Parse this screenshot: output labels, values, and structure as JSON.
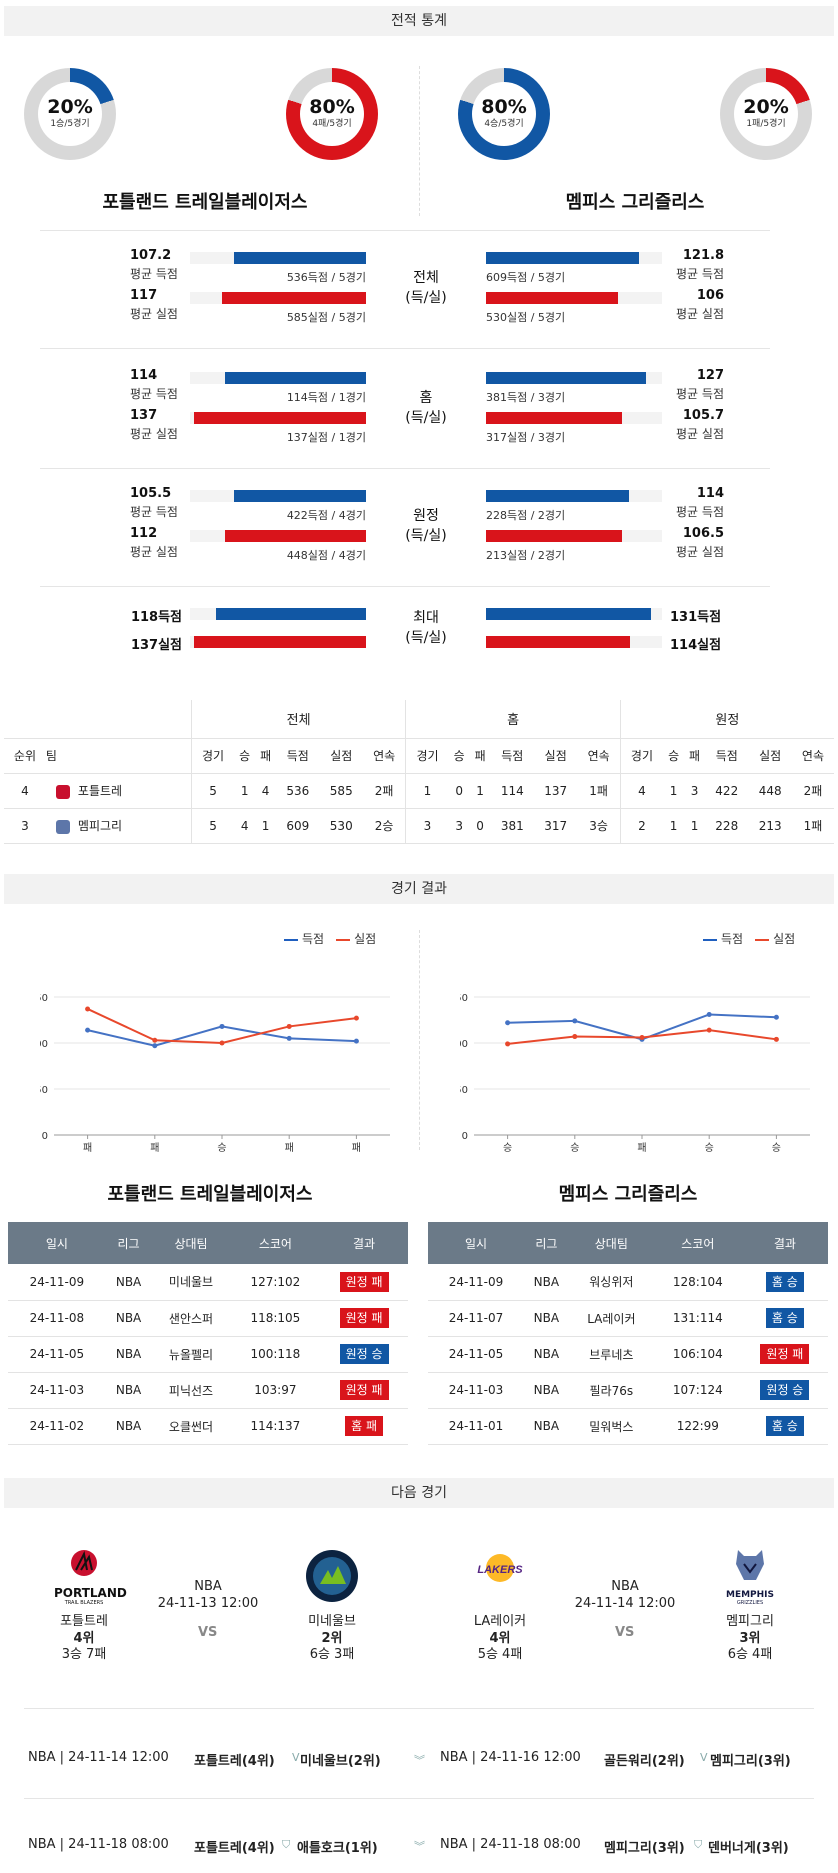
{
  "stats_title": "전적 통계",
  "results_title": "경기 결과",
  "next_title": "다음 경기",
  "colors": {
    "home": "#1157a4",
    "away": "#d9141b",
    "loss": "#d9141b",
    "win": "#1157a4"
  },
  "teams": {
    "left": {
      "name": "포틀랜드 트레일블레이저스",
      "short": "포틀트레",
      "donut_win": {
        "pct": "20%",
        "sub": "1승/5경기",
        "fraction": 0.2
      },
      "donut_loss": {
        "pct": "80%",
        "sub": "4패/5경기",
        "fraction": 0.8
      }
    },
    "right": {
      "name": "멤피스 그리즐리스",
      "short": "멤피그리",
      "donut_win": {
        "pct": "80%",
        "sub": "4승/5경기",
        "fraction": 0.8
      },
      "donut_loss": {
        "pct": "20%",
        "sub": "1패/5경기",
        "fraction": 0.2
      }
    }
  },
  "compare": [
    {
      "cat": "전체",
      "cat2": "(득/실)",
      "left": [
        {
          "value": "107.2",
          "label": "평균 득점",
          "text": "536득점 / 5경기",
          "fraction": 0.75
        },
        {
          "value": "117",
          "label": "평균 실점",
          "text": "585실점 / 5경기",
          "fraction": 0.82
        }
      ],
      "right": [
        {
          "value": "121.8",
          "label": "평균 득점",
          "text": "609득점 / 5경기",
          "fraction": 0.87
        },
        {
          "value": "106",
          "label": "평균 실점",
          "text": "530실점 / 5경기",
          "fraction": 0.75
        }
      ]
    },
    {
      "cat": "홈",
      "cat2": "(득/실)",
      "left": [
        {
          "value": "114",
          "label": "평균 득점",
          "text": "114득점 / 1경기",
          "fraction": 0.8
        },
        {
          "value": "137",
          "label": "평균 실점",
          "text": "137실점 / 1경기",
          "fraction": 0.98
        }
      ],
      "right": [
        {
          "value": "127",
          "label": "평균 득점",
          "text": "381득점 / 3경기",
          "fraction": 0.91
        },
        {
          "value": "105.7",
          "label": "평균 실점",
          "text": "317실점 / 3경기",
          "fraction": 0.77
        }
      ]
    },
    {
      "cat": "원정",
      "cat2": "(득/실)",
      "left": [
        {
          "value": "105.5",
          "label": "평균 득점",
          "text": "422득점 / 4경기",
          "fraction": 0.75
        },
        {
          "value": "112",
          "label": "평균 실점",
          "text": "448실점 / 4경기",
          "fraction": 0.8
        }
      ],
      "right": [
        {
          "value": "114",
          "label": "평균 득점",
          "text": "228득점 / 2경기",
          "fraction": 0.81
        },
        {
          "value": "106.5",
          "label": "평균 실점",
          "text": "213실점 / 2경기",
          "fraction": 0.77
        }
      ]
    }
  ],
  "max_row": {
    "cat": "최대",
    "cat2": "(득/실)",
    "left": [
      {
        "value": "118득점",
        "fraction": 0.85
      },
      {
        "value": "137실점",
        "fraction": 0.98
      }
    ],
    "right": [
      {
        "value": "131득점",
        "fraction": 0.94
      },
      {
        "value": "114실점",
        "fraction": 0.82
      }
    ]
  },
  "standings": {
    "groups": [
      "전체",
      "홈",
      "원정"
    ],
    "headers": [
      "순위",
      "팀",
      "경기",
      "승",
      "패",
      "득점",
      "실점",
      "연속",
      "경기",
      "승",
      "패",
      "득점",
      "실점",
      "연속",
      "경기",
      "승",
      "패",
      "득점",
      "실점",
      "연속"
    ],
    "rows": [
      [
        "4",
        "포틀트레",
        "5",
        "1",
        "4",
        "536",
        "585",
        "2패",
        "1",
        "0",
        "1",
        "114",
        "137",
        "1패",
        "4",
        "1",
        "3",
        "422",
        "448",
        "2패"
      ],
      [
        "3",
        "멤피그리",
        "5",
        "4",
        "1",
        "609",
        "530",
        "2승",
        "3",
        "3",
        "0",
        "381",
        "317",
        "3승",
        "2",
        "1",
        "1",
        "228",
        "213",
        "1패"
      ]
    ]
  },
  "chart_data": [
    {
      "type": "line",
      "categories": [
        "패",
        "패",
        "승",
        "패",
        "패"
      ],
      "series": [
        {
          "name": "득점",
          "values": [
            114,
            97,
            118,
            105,
            102
          ]
        },
        {
          "name": "실점",
          "values": [
            137,
            103,
            100,
            118,
            127
          ]
        }
      ],
      "ylim": [
        0,
        150
      ],
      "yticks": [
        "0",
        "50",
        "100",
        "150"
      ],
      "legend": "top-right",
      "grid": true
    },
    {
      "type": "line",
      "categories": [
        "승",
        "승",
        "패",
        "승",
        "승"
      ],
      "series": [
        {
          "name": "득점",
          "values": [
            122,
            124,
            104,
            131,
            128
          ]
        },
        {
          "name": "실점",
          "values": [
            99,
            107,
            106,
            114,
            104
          ]
        }
      ],
      "ylim": [
        0,
        150
      ],
      "yticks": [
        "0",
        "50",
        "100",
        "150"
      ],
      "legend": "top-right",
      "grid": true
    }
  ],
  "results": {
    "headers": [
      "일시",
      "리그",
      "상대팀",
      "스코어",
      "결과"
    ],
    "left": [
      [
        "24-11-09",
        "NBA",
        "미네울브",
        "127:102",
        "원정 패",
        "loss"
      ],
      [
        "24-11-08",
        "NBA",
        "샌안스퍼",
        "118:105",
        "원정 패",
        "loss"
      ],
      [
        "24-11-05",
        "NBA",
        "뉴올펠리",
        "100:118",
        "원정 승",
        "win"
      ],
      [
        "24-11-03",
        "NBA",
        "피닉선즈",
        "103:97",
        "원정 패",
        "loss"
      ],
      [
        "24-11-02",
        "NBA",
        "오클썬더",
        "114:137",
        "홈 패",
        "loss"
      ]
    ],
    "right": [
      [
        "24-11-09",
        "NBA",
        "워싱위저",
        "128:104",
        "홈 승",
        "win"
      ],
      [
        "24-11-07",
        "NBA",
        "LA레이커",
        "131:114",
        "홈 승",
        "win"
      ],
      [
        "24-11-05",
        "NBA",
        "브루네츠",
        "106:104",
        "원정 패",
        "loss"
      ],
      [
        "24-11-03",
        "NBA",
        "필라76s",
        "107:124",
        "원정 승",
        "win"
      ],
      [
        "24-11-01",
        "NBA",
        "밀워벅스",
        "122:99",
        "홈 승",
        "win"
      ]
    ]
  },
  "next": {
    "left": {
      "league": "NBA",
      "time": "24-11-13 12:00",
      "vs": "VS",
      "home": {
        "logo": "PORTLAND",
        "logo_sub": "TRAIL BLAZERS",
        "name": "포틀트레",
        "rank": "4위",
        "record": "3승 7패"
      },
      "away": {
        "name": "미네울브",
        "rank": "2위",
        "record": "6승 3패"
      }
    },
    "right": {
      "league": "NBA",
      "time": "24-11-14 12:00",
      "vs": "VS",
      "home": {
        "logo": "LAKERS",
        "name": "LA레이커",
        "rank": "4위",
        "record": "5승 4패"
      },
      "away": {
        "logo": "MEMPHIS",
        "logo_sub": "GRIZZLIES",
        "name": "멤피그리",
        "rank": "3위",
        "record": "6승 4패"
      }
    }
  },
  "schedule": [
    {
      "l_meta": "NBA | 24-11-14 12:00",
      "l_teams": "포틀트레(4위)",
      "l_opp": "미네울브(2위)",
      "r_meta": "NBA | 24-11-16 12:00",
      "r_teams": "골든워리(2위)",
      "r_opp": "멤피그리(3위)"
    },
    {
      "l_meta": "NBA | 24-11-18 08:00",
      "l_teams": "포틀트레(4위)",
      "l_opp": "애틀호크(1위)",
      "r_meta": "NBA | 24-11-18 08:00",
      "r_teams": "멤피그리(3위)",
      "r_opp": "덴버너게(3위)"
    }
  ]
}
